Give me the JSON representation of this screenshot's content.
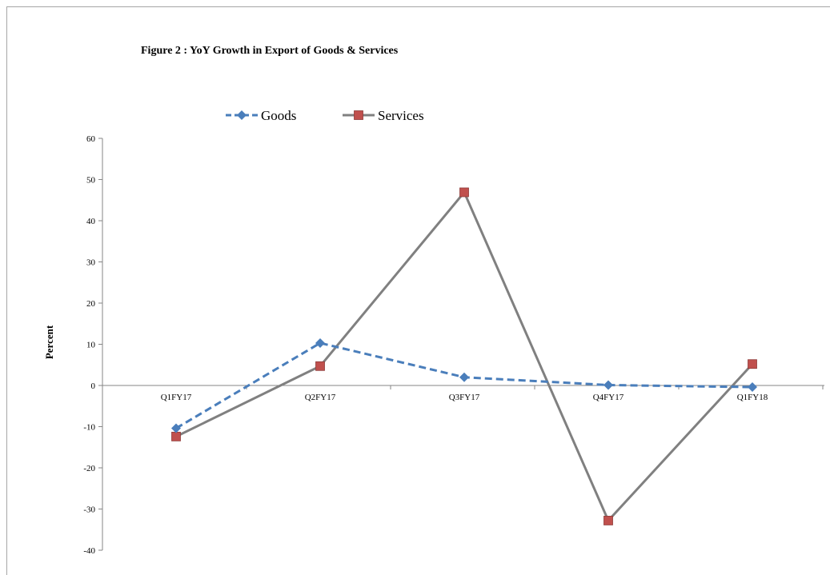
{
  "chart_data": {
    "type": "line",
    "title": "Figure 2 : YoY Growth in Export  of Goods & Services",
    "ylabel": "Percent",
    "xlabel": "",
    "categories": [
      "Q1FY17",
      "Q2FY17",
      "Q3FY17",
      "Q4FY17",
      "Q1FY18"
    ],
    "ylim": [
      -40,
      60
    ],
    "yticks": [
      "-40",
      "-30",
      "-20",
      "-10",
      "0",
      "10",
      "20",
      "30",
      "40",
      "50",
      "60"
    ],
    "legend_position": "top",
    "grid": false,
    "series": [
      {
        "name": "Goods",
        "values": [
          -10.4,
          10.3,
          2.0,
          0.1,
          -0.4
        ],
        "color": "#4a7ebb",
        "style": "dashed",
        "marker": "diamond"
      },
      {
        "name": "Services",
        "values": [
          -12.4,
          4.7,
          46.9,
          -32.8,
          5.2
        ],
        "color": "#808080",
        "style": "solid",
        "marker": "square",
        "marker_color": "#c0504d"
      }
    ]
  }
}
